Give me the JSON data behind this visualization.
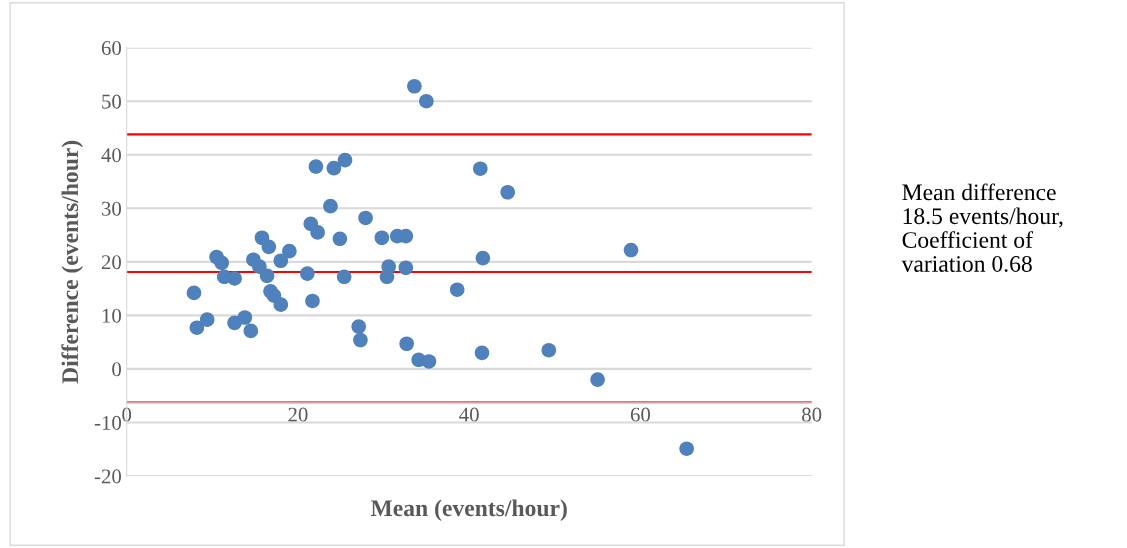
{
  "chart_data": {
    "type": "scatter",
    "xlabel": "Mean (events/hour)",
    "ylabel": "Difference (events/hour)",
    "x": [
      7.86,
      8.2,
      9.4,
      10.5,
      11.1,
      11.4,
      12.6,
      12.6,
      13.8,
      14.5,
      14.8,
      15.8,
      15.5,
      16.4,
      16.6,
      16.8,
      17.2,
      18.0,
      18.0,
      19.0,
      21.1,
      21.5,
      21.7,
      22.1,
      22.3,
      23.8,
      24.2,
      24.9,
      25.4,
      25.5,
      27.1,
      27.3,
      27.9,
      29.8,
      30.6,
      30.4,
      31.6,
      32.6,
      32.6,
      32.7,
      33.6,
      34.1,
      35.0,
      35.3,
      38.6,
      41.3,
      41.6,
      41.5,
      44.5,
      49.3,
      55.0,
      58.9,
      65.4
    ],
    "series": [
      {
        "color": "#4f81bd",
        "values": [
          14.2,
          7.7,
          9.2,
          20.9,
          19.8,
          17.2,
          16.9,
          8.6,
          9.6,
          7.1,
          20.4,
          24.5,
          19.1,
          17.4,
          22.8,
          14.5,
          13.7,
          12.0,
          20.2,
          22.0,
          17.8,
          27.1,
          12.7,
          37.8,
          25.5,
          30.4,
          37.5,
          24.3,
          17.2,
          39.0,
          7.9,
          5.4,
          28.2,
          24.5,
          19.1,
          17.2,
          24.8,
          24.8,
          18.9,
          4.7,
          52.8,
          1.7,
          50.0,
          1.4,
          14.8,
          37.4,
          20.7,
          3.0,
          33.0,
          3.5,
          -2.0,
          22.2,
          -14.9
        ]
      }
    ],
    "marker": "circle",
    "grid": "y",
    "xlim": [
      0,
      80
    ],
    "xticks": [
      0,
      20,
      40,
      60,
      80
    ],
    "ylim": [
      -20,
      60
    ],
    "yticks": [
      -20,
      -10,
      0,
      10,
      20,
      30,
      40,
      50,
      60
    ],
    "ref_lines": [
      {
        "axis": "y",
        "value": 43.8,
        "color": "#ff0000"
      },
      {
        "axis": "y",
        "value": 18.1,
        "color": "#ff0000"
      },
      {
        "axis": "y",
        "value": -6.2,
        "color": "#ff0000"
      }
    ],
    "annotations": [
      "Mean difference\n18.5 events/hour,\nCoefficient of\nvariation 0.68"
    ]
  }
}
